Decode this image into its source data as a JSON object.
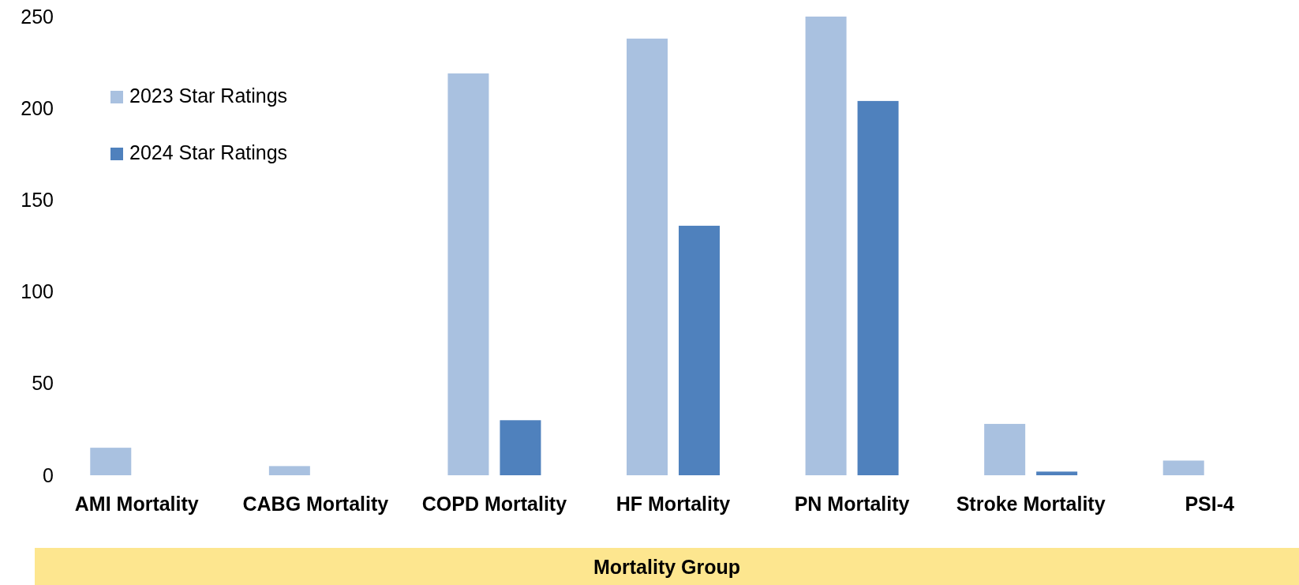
{
  "chart_data": {
    "type": "bar",
    "categories": [
      "AMI Mortality",
      "CABG Mortality",
      "COPD Mortality",
      "HF Mortality",
      "PN Mortality",
      "Stroke Mortality",
      "PSI-4"
    ],
    "series": [
      {
        "name": "2023 Star Ratings",
        "color": "#a9c1e0",
        "values": [
          15,
          5,
          219,
          238,
          250,
          28,
          8
        ]
      },
      {
        "name": "2024 Star Ratings",
        "color": "#4f81bd",
        "values": [
          null,
          null,
          30,
          136,
          204,
          2,
          null
        ]
      }
    ],
    "xlabel": "Mortality Group",
    "ylim": [
      0,
      250
    ],
    "yticks": [
      0,
      50,
      100,
      150,
      200,
      250
    ],
    "grid": false,
    "legend": "top left"
  }
}
